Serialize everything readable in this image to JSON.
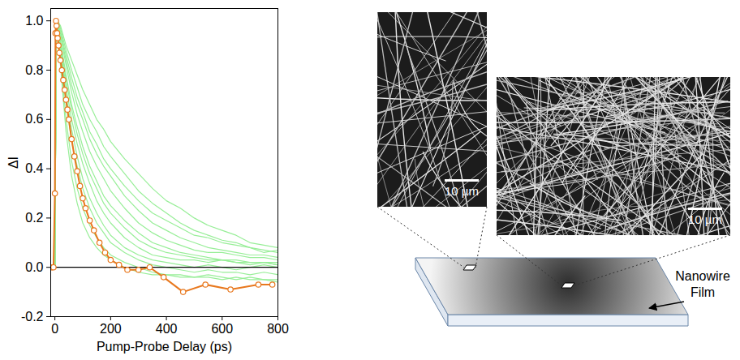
{
  "chart_data": {
    "type": "line",
    "x_label": "Pump-Probe Delay (ps)",
    "y_label": "ΔI",
    "xlim": [
      -15,
      800
    ],
    "ylim": [
      -0.2,
      1.05
    ],
    "xticks": [
      0,
      200,
      400,
      600,
      800
    ],
    "yticks": [
      {
        "value": -0.2,
        "label": "-0.2"
      },
      {
        "value": 0,
        "label": "0.0"
      },
      0.2,
      0.4,
      0.6,
      0.8,
      {
        "value": 1,
        "label": "1.0"
      }
    ],
    "x": [
      -10,
      0,
      5,
      10,
      20,
      40,
      60,
      80,
      100,
      125,
      150,
      175,
      200,
      250,
      300,
      350,
      400,
      450,
      500,
      550,
      600,
      650,
      700,
      750,
      800
    ],
    "series": [
      {
        "color": "#98ee98",
        "values": [
          0,
          0,
          1,
          0.97,
          0.9,
          0.7,
          0.56,
          0.45,
          0.36,
          0.28,
          0.22,
          0.17,
          0.13,
          0.08,
          0.05,
          0.03,
          0.02,
          0.01,
          0,
          0.01,
          0,
          -0.01,
          0,
          0.01,
          0
        ]
      },
      {
        "color": "#98ee98",
        "values": [
          0,
          0,
          1,
          0.98,
          0.92,
          0.78,
          0.66,
          0.57,
          0.49,
          0.41,
          0.35,
          0.29,
          0.25,
          0.19,
          0.14,
          0.1,
          0.08,
          0.06,
          0.05,
          0.04,
          0.03,
          0.03,
          0.02,
          0.02,
          0.02
        ]
      },
      {
        "color": "#98ee98",
        "values": [
          0,
          0,
          0.98,
          0.99,
          0.95,
          0.84,
          0.74,
          0.66,
          0.6,
          0.52,
          0.46,
          0.41,
          0.37,
          0.29,
          0.23,
          0.18,
          0.15,
          0.12,
          0.1,
          0.08,
          0.07,
          0.06,
          0.05,
          0.05,
          0.04
        ]
      },
      {
        "color": "#98ee98",
        "values": [
          0,
          0,
          0.96,
          1,
          0.97,
          0.88,
          0.8,
          0.73,
          0.66,
          0.6,
          0.55,
          0.49,
          0.45,
          0.38,
          0.31,
          0.26,
          0.22,
          0.18,
          0.15,
          0.13,
          0.11,
          0.1,
          0.08,
          0.07,
          0.06
        ]
      },
      {
        "color": "#98ee98",
        "values": [
          0,
          0,
          1,
          0.95,
          0.86,
          0.6,
          0.43,
          0.32,
          0.24,
          0.17,
          0.12,
          0.08,
          0.05,
          0.02,
          0,
          -0.02,
          -0.03,
          -0.03,
          -0.04,
          -0.03,
          -0.04,
          -0.05,
          -0.04,
          -0.05,
          -0.05
        ]
      },
      {
        "color": "#98ee98",
        "values": [
          0,
          0,
          0.99,
          0.96,
          0.9,
          0.73,
          0.6,
          0.5,
          0.42,
          0.34,
          0.27,
          0.22,
          0.18,
          0.12,
          0.08,
          0.05,
          0.04,
          0.03,
          0.03,
          0.02,
          0.03,
          0.02,
          0.01,
          0.02,
          0.01
        ]
      },
      {
        "color": "#98ee98",
        "values": [
          0,
          0,
          0.97,
          1,
          0.98,
          0.9,
          0.84,
          0.78,
          0.72,
          0.66,
          0.6,
          0.56,
          0.51,
          0.44,
          0.38,
          0.32,
          0.27,
          0.24,
          0.2,
          0.17,
          0.15,
          0.13,
          0.1,
          0.09,
          0.08
        ]
      },
      {
        "color": "#98ee98",
        "values": [
          0,
          0,
          1,
          0.96,
          0.88,
          0.67,
          0.51,
          0.41,
          0.32,
          0.24,
          0.18,
          0.14,
          0.1,
          0.06,
          0.03,
          0.01,
          0,
          -0.01,
          -0.02,
          -0.01,
          -0.02,
          -0.02,
          -0.03,
          -0.02,
          -0.03
        ]
      },
      {
        "color": "#98ee98",
        "values": [
          0,
          0,
          0.98,
          0.98,
          0.94,
          0.82,
          0.71,
          0.62,
          0.55,
          0.47,
          0.41,
          0.36,
          0.31,
          0.24,
          0.18,
          0.14,
          0.11,
          0.09,
          0.07,
          0.06,
          0.06,
          0.05,
          0.04,
          0.04,
          0.03
        ]
      },
      {
        "color": "#98ee98",
        "values": [
          0,
          0,
          1,
          0.99,
          0.96,
          0.86,
          0.77,
          0.69,
          0.63,
          0.55,
          0.5,
          0.44,
          0.4,
          0.33,
          0.27,
          0.22,
          0.19,
          0.16,
          0.13,
          0.12,
          0.1,
          0.09,
          0.08,
          0.06,
          0.07
        ]
      },
      {
        "color": "#98ee98",
        "values": [
          0,
          0,
          0.98,
          0.93,
          0.82,
          0.55,
          0.37,
          0.26,
          0.18,
          0.12,
          0.08,
          0.05,
          0.03,
          0,
          -0.02,
          -0.03,
          -0.03,
          -0.04,
          -0.04,
          -0.04,
          -0.05,
          -0.04,
          -0.05,
          -0.05,
          -0.06
        ]
      },
      {
        "color": "#98ee98",
        "values": [
          0,
          0,
          1,
          0.97,
          0.91,
          0.76,
          0.64,
          0.54,
          0.46,
          0.38,
          0.32,
          0.26,
          0.22,
          0.16,
          0.11,
          0.08,
          0.06,
          0.05,
          0.04,
          0.03,
          0.03,
          0.02,
          0.02,
          0.02,
          0.01
        ]
      },
      {
        "color": "#000000",
        "x": [
          -15,
          800
        ],
        "values": [
          0,
          0
        ]
      },
      {
        "color": "#e8781e",
        "marker": "circle",
        "x": [
          -15,
          -10,
          -5,
          0,
          2,
          4,
          6,
          8,
          10,
          13,
          16,
          20,
          25,
          30,
          35,
          40,
          45,
          50,
          60,
          70,
          80,
          90,
          100,
          110,
          125,
          140,
          160,
          180,
          200,
          230,
          260,
          300,
          340,
          390,
          460,
          540,
          630,
          730,
          780
        ],
        "values": [
          0,
          0,
          0,
          0.3,
          0.95,
          1,
          0.98,
          0.95,
          0.93,
          0.9,
          0.87,
          0.84,
          0.8,
          0.76,
          0.72,
          0.68,
          0.64,
          0.6,
          0.52,
          0.45,
          0.39,
          0.33,
          0.28,
          0.24,
          0.19,
          0.15,
          0.1,
          0.06,
          0.03,
          0.01,
          -0.01,
          -0.01,
          0,
          -0.04,
          -0.1,
          -0.07,
          -0.09,
          -0.07,
          -0.07
        ]
      }
    ]
  },
  "images": [
    {
      "scale_bar": "10 µm"
    },
    {
      "scale_bar": "10 µm"
    }
  ],
  "diagram": {
    "label": "Nanowire Film"
  }
}
